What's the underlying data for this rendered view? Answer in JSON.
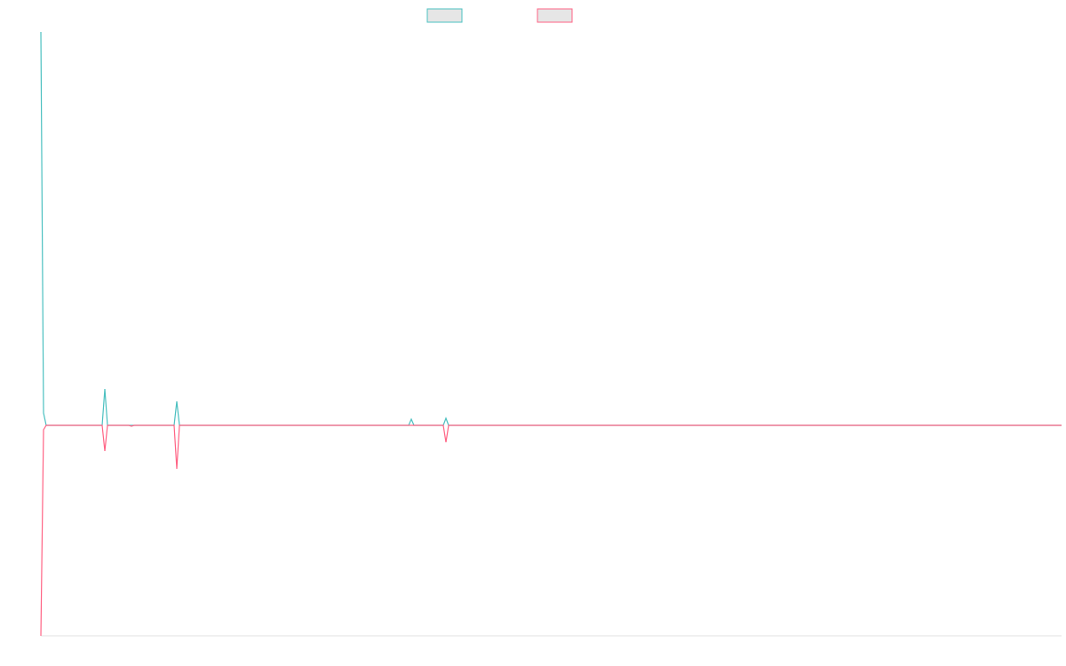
{
  "chart_data": {
    "type": "line",
    "x": [
      0,
      1,
      2,
      23,
      24,
      25,
      33,
      34,
      35,
      50,
      51,
      52,
      138,
      139,
      140,
      151,
      152,
      153,
      383
    ],
    "series": [
      {
        "color": "#4bc0c0",
        "values": [
          443,
          14,
          0,
          0,
          41,
          0,
          0,
          0,
          0,
          0,
          27,
          0,
          0,
          7,
          0,
          0,
          8,
          0,
          0
        ]
      },
      {
        "color": "#ff6384",
        "values": [
          -237,
          -5,
          0,
          0,
          -29,
          0,
          0,
          -1,
          0,
          0,
          -49,
          0,
          0,
          0,
          0,
          0,
          -19,
          0,
          0
        ]
      }
    ],
    "xlim": [
      0,
      383
    ],
    "ylim": [
      -237,
      443
    ]
  }
}
